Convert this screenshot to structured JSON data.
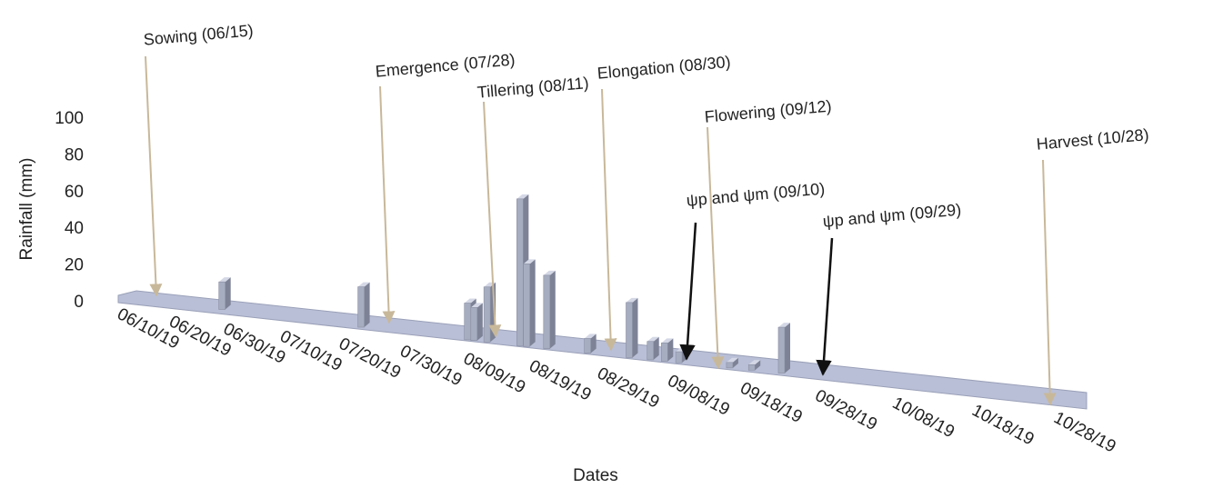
{
  "chart_data": {
    "type": "bar3d",
    "y_label": "Rainfall (mm)",
    "x_label": "Dates",
    "ylim": [
      0,
      100
    ],
    "yticks": [
      0,
      20,
      40,
      60,
      80,
      100
    ],
    "xticks": [
      "06/10/19",
      "06/20/19",
      "06/30/19",
      "07/10/19",
      "07/20/19",
      "07/30/19",
      "08/09/19",
      "08/19/19",
      "08/29/19",
      "09/08/19",
      "09/18/19",
      "09/28/19",
      "10/08/19",
      "10/18/19",
      "10/28/19"
    ],
    "x": [
      "06/29/19",
      "07/23/19",
      "08/09/19",
      "08/10/19",
      "08/12/19",
      "08/17/19",
      "08/18/19",
      "08/21/19",
      "08/27/19",
      "09/02/19",
      "09/05/19",
      "09/07/19",
      "09/09/19",
      "09/16/19",
      "09/19/19",
      "09/23/19"
    ],
    "values": [
      15,
      22,
      20,
      18,
      30,
      80,
      45,
      40,
      8,
      30,
      10,
      10,
      6,
      3,
      3,
      25
    ],
    "color": "#a7adc0",
    "annotations": [
      "Sowing (06/15)",
      "Emergence (07/28)",
      "Tillering (08/11)",
      "Elongation (08/30)",
      "Flowering (09/12)",
      "ψp and ψm (09/10)",
      "ψp and ψm (09/29)",
      "Harvest (10/28)"
    ]
  }
}
